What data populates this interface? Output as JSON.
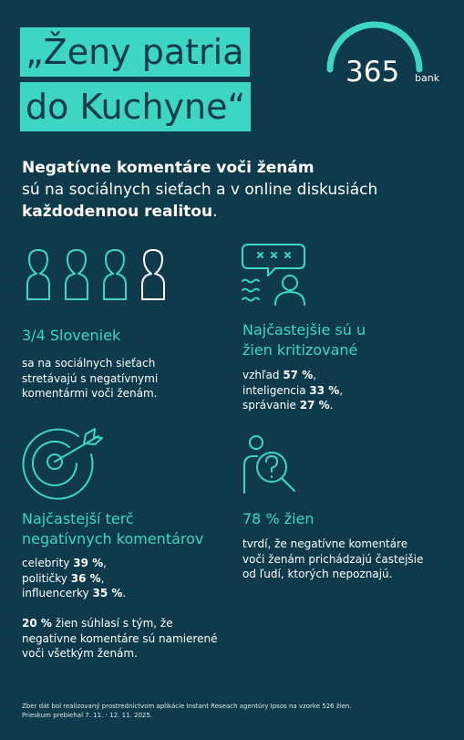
{
  "header": {
    "title": [
      "„Ženy patria",
      "do Kuchyne“"
    ],
    "logo": {
      "number": "365",
      "word": "bank"
    }
  },
  "intro": {
    "lead": "Negatívne komentáre voči ženám",
    "text": "sú na sociálnych sieťach a v online diskusiách",
    "bold": "každodennou realitou",
    "end": "."
  },
  "stats": [
    {
      "heading": "3/4 Sloveniek",
      "text": "sa na sociálnych sieťach stretávajú s negatívnymi komentármi voči ženám."
    },
    {
      "heading": "Najčastejšie sú u žien kritizované",
      "items": [
        {
          "label": "vzhľad",
          "value": "57 %",
          "punct": ","
        },
        {
          "label": "inteligencia",
          "value": "33 %",
          "punct": ","
        },
        {
          "label": "správanie",
          "value": "27 %",
          "punct": "."
        }
      ]
    },
    {
      "heading": "Najčastejší terč negatívnych komentárov",
      "items": [
        {
          "label": "celebrity",
          "value": "39 %",
          "punct": ","
        },
        {
          "label": "političky",
          "value": "36 %",
          "punct": ","
        },
        {
          "label": "influencerky",
          "value": "35 %",
          "punct": "."
        }
      ],
      "note": {
        "value": "20 %",
        "text": "žien súhlasí s tým, že negatívne komentáre sú namierené voči všetkým ženám."
      }
    },
    {
      "heading": "78 % žien",
      "text": "tvrdí, že negatívne komentáre voči ženám prichádzajú častejšie od ľudí, ktorých nepoznajú."
    }
  ],
  "footnote": [
    "Zber dát bol realizovaný prostredníctvom aplikácie Instant Reseach agentúry Ipsos na vzorke 526 žien.",
    "Prieskum prebiehal 7. 11. - 12. 11. 2025."
  ]
}
